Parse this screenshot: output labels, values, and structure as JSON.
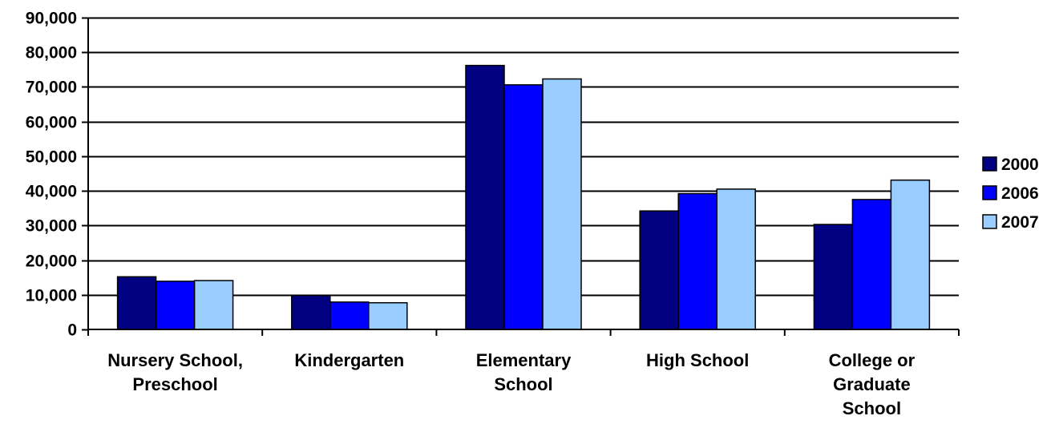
{
  "chart_data": {
    "type": "bar",
    "title": "",
    "xlabel": "",
    "ylabel": "",
    "categories": [
      [
        "Nursery School,",
        "Preschool"
      ],
      [
        "Kindergarten"
      ],
      [
        "Elementary",
        "School"
      ],
      [
        "High School"
      ],
      [
        "College or",
        "Graduate",
        "School"
      ]
    ],
    "series": [
      {
        "name": "2000",
        "color": "#000080",
        "values": [
          15200,
          9800,
          76200,
          34200,
          30300
        ]
      },
      {
        "name": "2006",
        "color": "#0000FF",
        "values": [
          13900,
          7900,
          70600,
          39200,
          37500
        ]
      },
      {
        "name": "2007",
        "color": "#99CCFF",
        "values": [
          14100,
          7700,
          72300,
          40500,
          43100
        ]
      }
    ],
    "ylim": [
      0,
      90000
    ],
    "yticks": [
      0,
      10000,
      20000,
      30000,
      40000,
      50000,
      60000,
      70000,
      80000,
      90000
    ],
    "ytick_labels": [
      "0",
      "10,000",
      "20,000",
      "30,000",
      "40,000",
      "50,000",
      "60,000",
      "70,000",
      "80,000",
      "90,000"
    ],
    "grid": true,
    "legend_position": "right"
  }
}
